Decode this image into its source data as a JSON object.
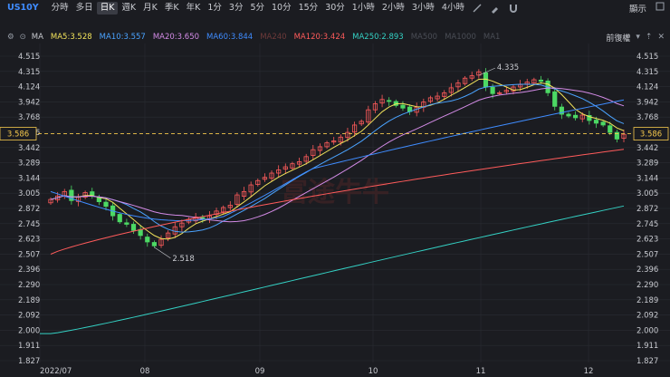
{
  "toolbar": {
    "symbol": "US10Y",
    "timeframes": [
      "分時",
      "多日",
      "日K",
      "週K",
      "月K",
      "季K",
      "年K",
      "1分",
      "3分",
      "5分",
      "10分",
      "15分",
      "30分",
      "1小時",
      "2小時",
      "3小時",
      "4小時"
    ],
    "active_timeframe": "日K",
    "right_label": "顯示"
  },
  "indicators": {
    "main_label": "MA",
    "items": [
      {
        "label": "MA5:3.528",
        "color": "#f2e35b"
      },
      {
        "label": "MA10:3.557",
        "color": "#4aa3ff"
      },
      {
        "label": "MA20:3.650",
        "color": "#d38be6"
      },
      {
        "label": "MA60:3.844",
        "color": "#3f8cff"
      },
      {
        "label": "MA240",
        "color": "#6e3a3a"
      },
      {
        "label": "MA120:3.424",
        "color": "#ff5b5b"
      },
      {
        "label": "MA250:2.893",
        "color": "#34d1c4"
      },
      {
        "label": "MA500",
        "color": "#4a4d55"
      },
      {
        "label": "MA1000",
        "color": "#4a4d55"
      },
      {
        "label": "MA1",
        "color": "#4a4d55"
      }
    ],
    "adjust_label": "前復權"
  },
  "price_axis": {
    "ticks": [
      "4.515",
      "4.315",
      "4.124",
      "3.942",
      "3.768",
      "3.586",
      "3.442",
      "3.289",
      "3.144",
      "3.005",
      "2.872",
      "2.745",
      "2.623",
      "2.507",
      "2.396",
      "2.290",
      "2.189",
      "2.092",
      "2.000",
      "1.911",
      "1.827"
    ]
  },
  "current_price": "3.586",
  "annotations": {
    "high": "4.335",
    "low": "2.518"
  },
  "date_axis": [
    "2022/07",
    "08",
    "09",
    "10",
    "11",
    "12"
  ],
  "watermark": "富途牛牛",
  "colors": {
    "up": "#ff5b5b",
    "down": "#4cd964",
    "bg": "#1b1c21",
    "grid": "#2a2c33",
    "accent": "#f5c84c"
  },
  "chart_data": {
    "type": "candlestick",
    "title": "",
    "xlabel": "",
    "ylabel": "",
    "x_start": "2022/07",
    "x_end": "12",
    "ylim": [
      1.827,
      4.515
    ],
    "scale": "log",
    "grid": true,
    "legend": "top",
    "close_path": [
      2.95,
      2.98,
      3.02,
      2.94,
      2.97,
      3.01,
      2.98,
      2.93,
      2.89,
      2.81,
      2.76,
      2.74,
      2.69,
      2.65,
      2.6,
      2.57,
      2.62,
      2.67,
      2.72,
      2.75,
      2.78,
      2.8,
      2.78,
      2.81,
      2.85,
      2.88,
      2.9,
      2.99,
      3.02,
      3.08,
      3.12,
      3.15,
      3.19,
      3.22,
      3.25,
      3.28,
      3.3,
      3.35,
      3.42,
      3.45,
      3.49,
      3.51,
      3.55,
      3.6,
      3.68,
      3.72,
      3.85,
      3.92,
      3.97,
      3.95,
      3.9,
      3.87,
      3.83,
      3.88,
      3.94,
      3.99,
      4.01,
      4.05,
      4.11,
      4.17,
      4.23,
      4.26,
      4.31,
      4.12,
      4.04,
      4.05,
      4.08,
      4.12,
      4.15,
      4.18,
      4.21,
      4.19,
      4.05,
      3.89,
      3.8,
      3.78,
      3.76,
      3.79,
      3.73,
      3.7,
      3.68,
      3.6,
      3.53,
      3.58
    ],
    "ma_lines": [
      {
        "name": "MA5",
        "last": 3.528
      },
      {
        "name": "MA10",
        "last": 3.557
      },
      {
        "name": "MA20",
        "last": 3.65
      },
      {
        "name": "MA60",
        "last": 3.844
      },
      {
        "name": "MA120",
        "last": 3.424
      },
      {
        "name": "MA250",
        "last": 2.893
      }
    ]
  }
}
